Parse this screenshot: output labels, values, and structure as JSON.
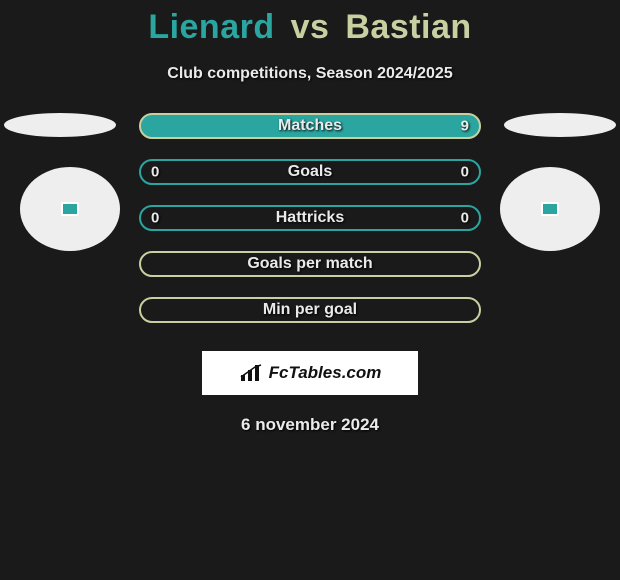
{
  "colors": {
    "bg": "#1a1a1a",
    "teal": "#2aa5a0",
    "olive": "#c8cfa1",
    "light": "#eeeeee",
    "text": "#eaeaea"
  },
  "title": {
    "player1": "Lienard",
    "vs": "vs",
    "player2": "Bastian",
    "p1_color": "#2aa5a0",
    "p2_color": "#c8cfa1"
  },
  "subtitle": "Club competitions, Season 2024/2025",
  "rows": [
    {
      "label": "Matches",
      "left": "",
      "right": "9",
      "fill": "#2aa5a0",
      "border": "#c8cfa1"
    },
    {
      "label": "Goals",
      "left": "0",
      "right": "0",
      "fill": "transparent",
      "border": "#2aa5a0"
    },
    {
      "label": "Hattricks",
      "left": "0",
      "right": "0",
      "fill": "transparent",
      "border": "#2aa5a0"
    },
    {
      "label": "Goals per match",
      "left": "",
      "right": "",
      "fill": "transparent",
      "border": "#c8cfa1"
    },
    {
      "label": "Min per goal",
      "left": "",
      "right": "",
      "fill": "transparent",
      "border": "#c8cfa1"
    }
  ],
  "brand": "FcTables.com",
  "date": "6 november 2024"
}
